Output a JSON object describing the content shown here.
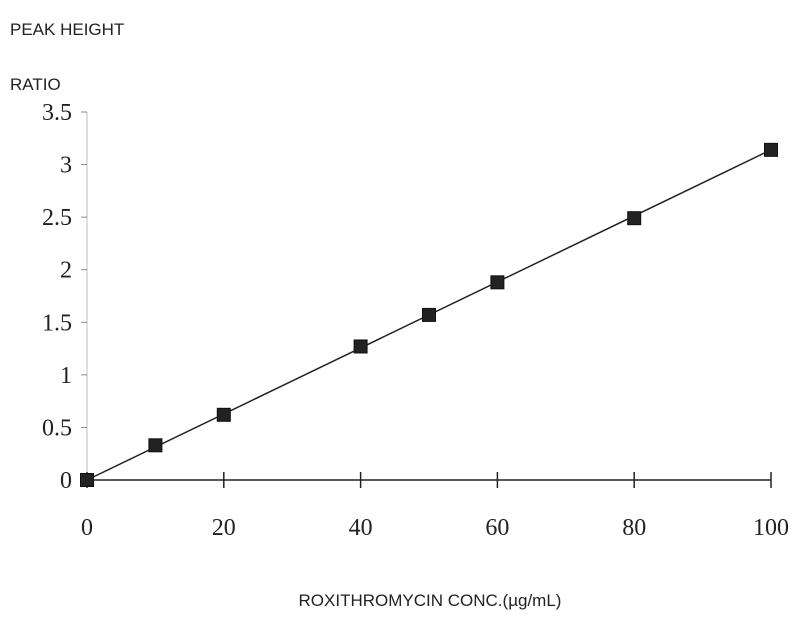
{
  "chart_data": {
    "type": "scatter",
    "ylabel_lines": [
      "PEAK HEIGHT",
      "RATIO"
    ],
    "xlabel": "ROXITHROMYCIN CONC.(µg/mL)",
    "xlim": [
      0,
      100
    ],
    "ylim": [
      0,
      3.5
    ],
    "x_ticks": [
      0,
      20,
      40,
      60,
      80,
      100
    ],
    "x_tick_labels": [
      "0",
      "20",
      "40",
      "60",
      "80",
      "100"
    ],
    "y_ticks": [
      0,
      0.5,
      1,
      1.5,
      2,
      2.5,
      3,
      3.5
    ],
    "y_tick_labels": [
      "0",
      "0.5",
      "1",
      "1.5",
      "2",
      "2.5",
      "3",
      "3.5"
    ],
    "grid": false,
    "legend": "none",
    "trendline": {
      "type": "linear",
      "x": [
        0,
        100
      ],
      "y": [
        0,
        3.14
      ]
    },
    "series": [
      {
        "marker": "square",
        "color": "#222222",
        "x": [
          0,
          10,
          20,
          40,
          50,
          60,
          80,
          100
        ],
        "y": [
          0,
          0.33,
          0.62,
          1.27,
          1.57,
          1.88,
          2.49,
          3.14
        ]
      }
    ]
  }
}
